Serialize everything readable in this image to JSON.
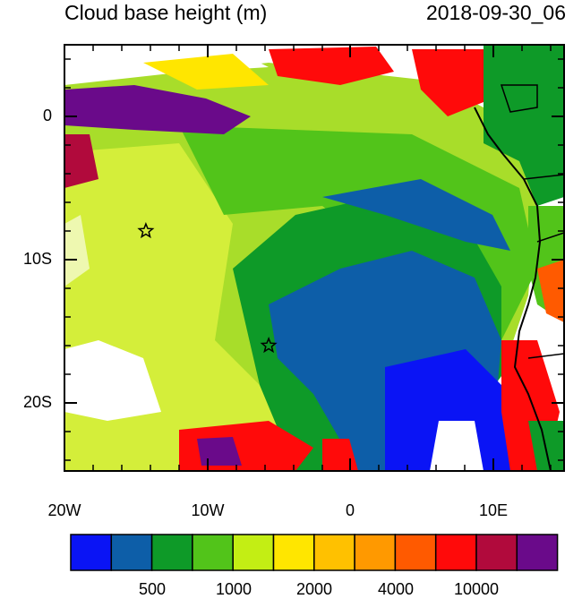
{
  "title": "Cloud base height (m)",
  "timestamp": "2018-09-30_06",
  "y_axis_labels": [
    "0",
    "10S",
    "20S"
  ],
  "x_axis_labels": [
    "20W",
    "10W",
    "0",
    "10E"
  ],
  "colorbar": {
    "colors": [
      "#0a14f5",
      "#0d5ea8",
      "#0e9a28",
      "#52c41a",
      "#c3ee14",
      "#ffe600",
      "#ffc100",
      "#ff9900",
      "#ff5a00",
      "#ff0a0a",
      "#b10a3c",
      "#6a0a8a"
    ],
    "labels": [
      "500",
      "1000",
      "2000",
      "4000",
      "10000"
    ]
  },
  "markers": [
    {
      "name": "star",
      "lon": -14.3,
      "lat": -8.0
    },
    {
      "name": "star",
      "lon": -5.7,
      "lat": -16.0
    }
  ]
}
